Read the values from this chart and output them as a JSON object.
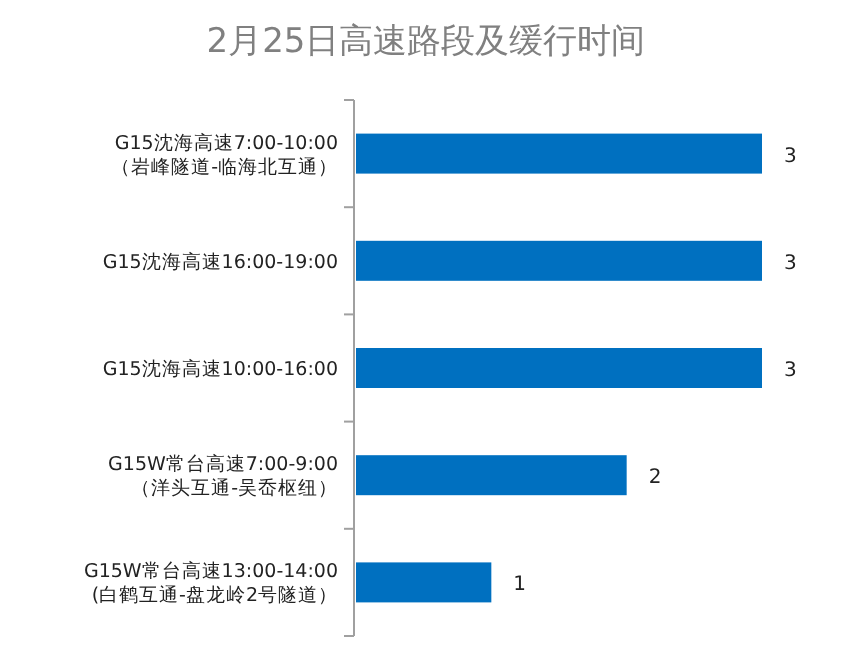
{
  "chart_data": {
    "type": "bar",
    "orientation": "horizontal",
    "title": "2月25日高速路段及缓行时间",
    "categories": [
      "G15沈海高速7:00-10:00\n（岩峰隧道-临海北互通）",
      "G15沈海高速16:00-19:00",
      "G15沈海高速10:00-16:00",
      "G15W常台高速7:00-9:00\n（洋头互通-吴岙枢纽）",
      "G15W常台高速13:00-14:00\n(白鹤互通-盘龙岭2号隧道）"
    ],
    "values": [
      3,
      3,
      3,
      2,
      1
    ],
    "color": "#0070c0",
    "data_labels": true
  }
}
